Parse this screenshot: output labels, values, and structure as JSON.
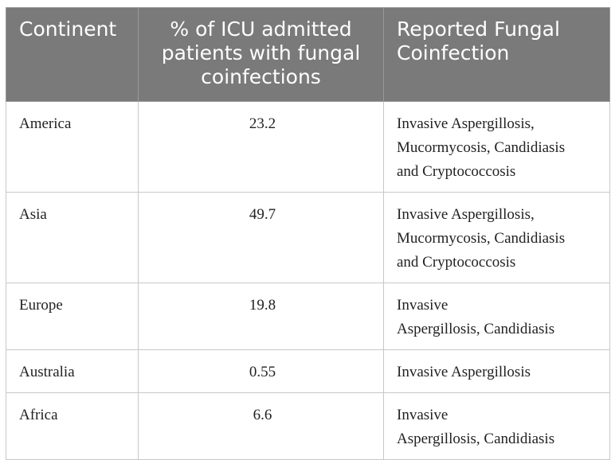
{
  "table": {
    "headers": [
      "Continent",
      "% of ICU admitted patients with fungal coinfections",
      "Reported Fungal Coinfection"
    ],
    "rows": [
      {
        "continent": "America",
        "percent": "23.2",
        "coinfection_lines": [
          "Invasive Aspergillosis,",
          "Mucormycosis, Candidiasis",
          "and Cryptococcosis"
        ]
      },
      {
        "continent": "Asia",
        "percent": "49.7",
        "coinfection_lines": [
          "Invasive Aspergillosis,",
          "Mucormycosis, Candidiasis",
          "and Cryptococcosis"
        ]
      },
      {
        "continent": "Europe",
        "percent": "19.8",
        "coinfection_lines": [
          "Invasive",
          "Aspergillosis, Candidiasis"
        ]
      },
      {
        "continent": "Australia",
        "percent": "0.55",
        "coinfection_lines": [
          "Invasive Aspergillosis"
        ]
      },
      {
        "continent": "Africa",
        "percent": "6.6",
        "coinfection_lines": [
          "Invasive",
          "Aspergillosis, Candidiasis"
        ]
      }
    ]
  }
}
